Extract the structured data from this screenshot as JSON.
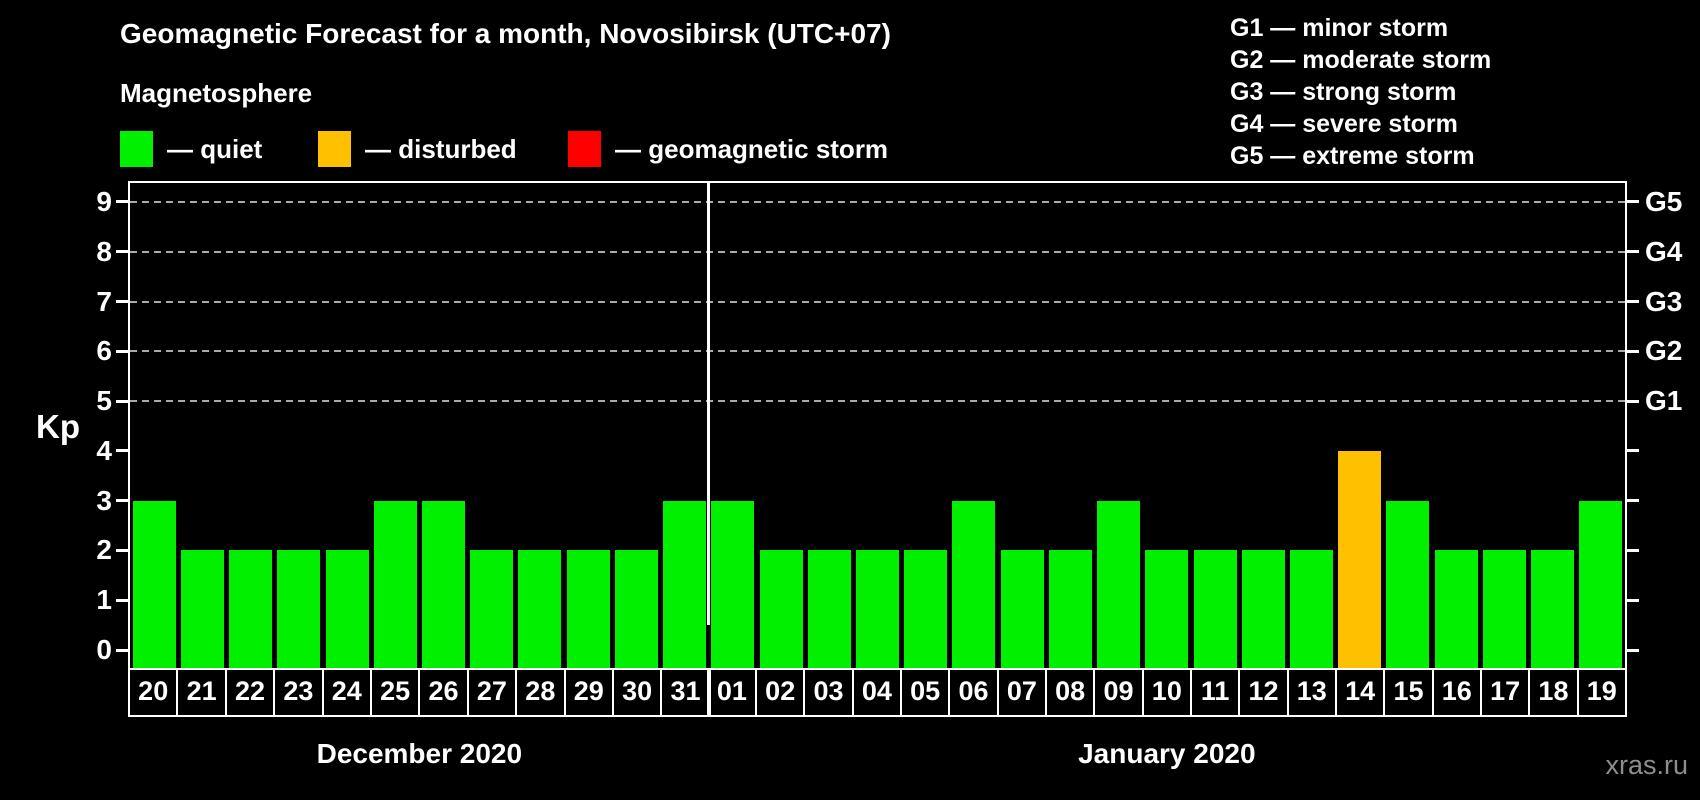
{
  "title": "Geomagnetic Forecast for a month, Novosibirsk (UTC+07)",
  "legend": {
    "heading": "Magnetosphere",
    "items": [
      {
        "name": "quiet",
        "color": "#00f000",
        "label": "— quiet"
      },
      {
        "name": "disturbed",
        "color": "#ffc000",
        "label": "— disturbed"
      },
      {
        "name": "storm",
        "color": "#ff0000",
        "label": "— geomagnetic storm"
      }
    ]
  },
  "storm_scale": [
    "G1 — minor storm",
    "G2 — moderate storm",
    "G3 — strong storm",
    "G4 — severe storm",
    "G5 — extreme storm"
  ],
  "watermark": "xras.ru",
  "chart_data": {
    "type": "bar",
    "title": "Geomagnetic Forecast for a month, Novosibirsk (UTC+07)",
    "ylabel": "Kp",
    "ylim": [
      0,
      9.4
    ],
    "yticks": [
      0,
      1,
      2,
      3,
      4,
      5,
      6,
      7,
      8,
      9
    ],
    "gridlines_at": [
      5,
      6,
      7,
      8,
      9
    ],
    "grid_style": "dashed",
    "legend_position": "top",
    "right_axis": [
      {
        "kp": 5,
        "label": "G1"
      },
      {
        "kp": 6,
        "label": "G2"
      },
      {
        "kp": 7,
        "label": "G3"
      },
      {
        "kp": 8,
        "label": "G4"
      },
      {
        "kp": 9,
        "label": "G5"
      }
    ],
    "status_colors": {
      "quiet": "#00f000",
      "disturbed": "#ffc000",
      "storm": "#ff0000"
    },
    "months": [
      {
        "label": "December 2020",
        "days": [
          {
            "day": "20",
            "kp": 3,
            "status": "quiet"
          },
          {
            "day": "21",
            "kp": 2,
            "status": "quiet"
          },
          {
            "day": "22",
            "kp": 2,
            "status": "quiet"
          },
          {
            "day": "23",
            "kp": 2,
            "status": "quiet"
          },
          {
            "day": "24",
            "kp": 2,
            "status": "quiet"
          },
          {
            "day": "25",
            "kp": 3,
            "status": "quiet"
          },
          {
            "day": "26",
            "kp": 3,
            "status": "quiet"
          },
          {
            "day": "27",
            "kp": 2,
            "status": "quiet"
          },
          {
            "day": "28",
            "kp": 2,
            "status": "quiet"
          },
          {
            "day": "29",
            "kp": 2,
            "status": "quiet"
          },
          {
            "day": "30",
            "kp": 2,
            "status": "quiet"
          },
          {
            "day": "31",
            "kp": 3,
            "status": "quiet"
          }
        ]
      },
      {
        "label": "January 2020",
        "days": [
          {
            "day": "01",
            "kp": 3,
            "status": "quiet"
          },
          {
            "day": "02",
            "kp": 2,
            "status": "quiet"
          },
          {
            "day": "03",
            "kp": 2,
            "status": "quiet"
          },
          {
            "day": "04",
            "kp": 2,
            "status": "quiet"
          },
          {
            "day": "05",
            "kp": 2,
            "status": "quiet"
          },
          {
            "day": "06",
            "kp": 3,
            "status": "quiet"
          },
          {
            "day": "07",
            "kp": 2,
            "status": "quiet"
          },
          {
            "day": "08",
            "kp": 2,
            "status": "quiet"
          },
          {
            "day": "09",
            "kp": 3,
            "status": "quiet"
          },
          {
            "day": "10",
            "kp": 2,
            "status": "quiet"
          },
          {
            "day": "11",
            "kp": 2,
            "status": "quiet"
          },
          {
            "day": "12",
            "kp": 2,
            "status": "quiet"
          },
          {
            "day": "13",
            "kp": 2,
            "status": "quiet"
          },
          {
            "day": "14",
            "kp": 4,
            "status": "disturbed"
          },
          {
            "day": "15",
            "kp": 3,
            "status": "quiet"
          },
          {
            "day": "16",
            "kp": 2,
            "status": "quiet"
          },
          {
            "day": "17",
            "kp": 2,
            "status": "quiet"
          },
          {
            "day": "18",
            "kp": 2,
            "status": "quiet"
          },
          {
            "day": "19",
            "kp": 3,
            "status": "quiet"
          }
        ]
      }
    ]
  }
}
